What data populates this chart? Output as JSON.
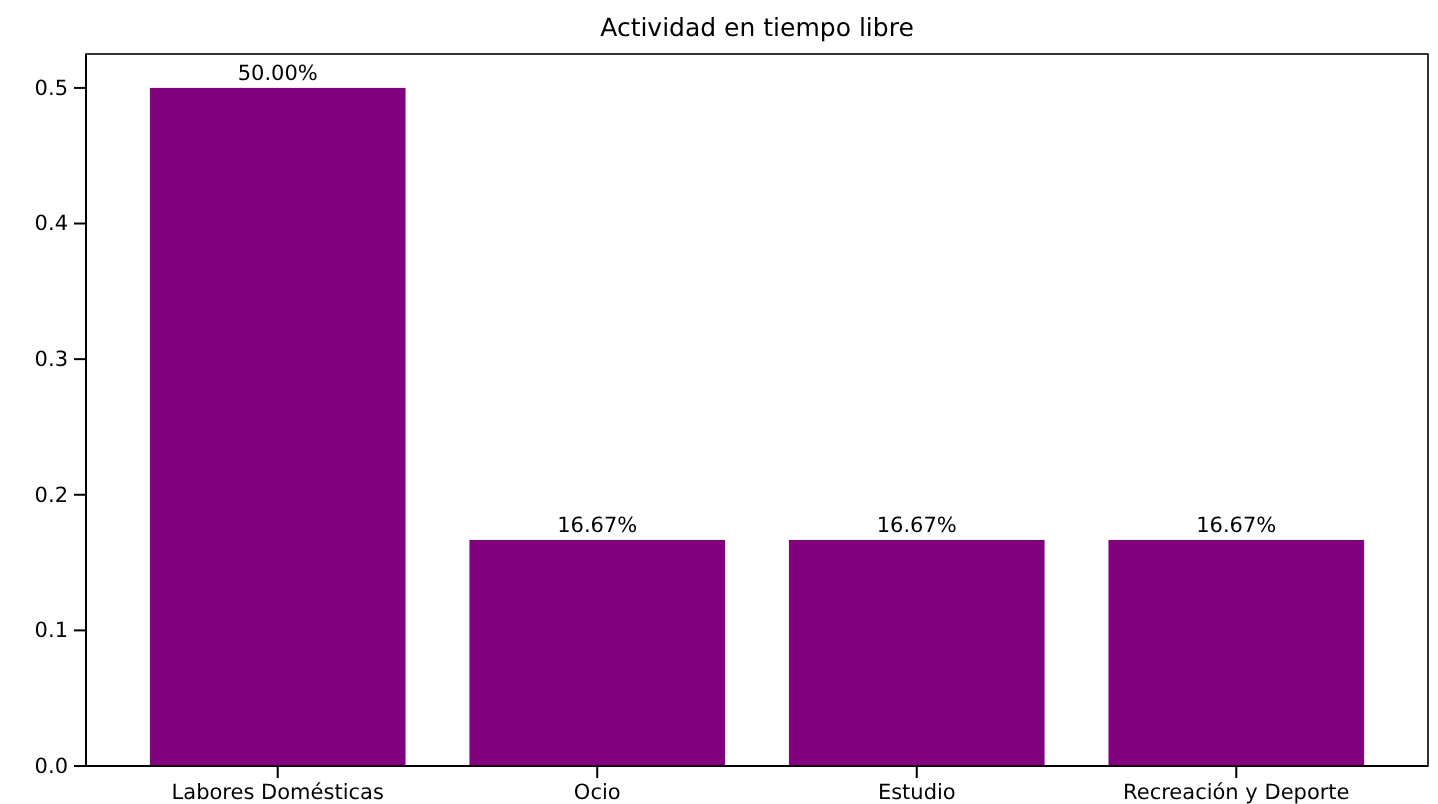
{
  "chart_data": {
    "type": "bar",
    "title": "Actividad en tiempo libre",
    "categories": [
      "Labores Domésticas",
      "Ocio",
      "Estudio",
      "Recreación y Deporte"
    ],
    "values": [
      0.5,
      0.1667,
      0.1667,
      0.1667
    ],
    "value_labels": [
      "50.00%",
      "16.67%",
      "16.67%",
      "16.67%"
    ],
    "color": "#800080",
    "ylim": [
      0,
      0.525
    ],
    "yticks": [
      {
        "value": 0,
        "label": "0.0"
      },
      0.1,
      0.2,
      0.3,
      0.4,
      0.5
    ],
    "grid": false
  }
}
